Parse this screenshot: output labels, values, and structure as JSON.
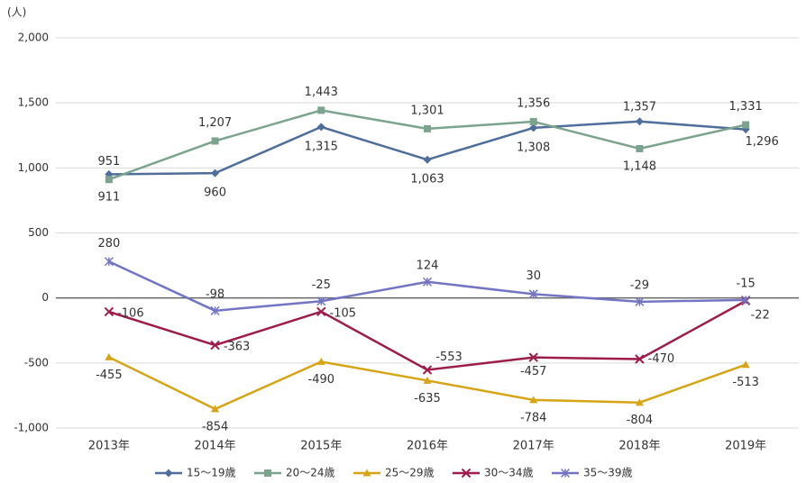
{
  "chart_data": {
    "type": "line",
    "unit_label": "(人)",
    "categories": [
      "2013年",
      "2014年",
      "2015年",
      "2016年",
      "2017年",
      "2018年",
      "2019年"
    ],
    "ylim": [
      -1000,
      2000
    ],
    "yticks": [
      {
        "value": -1000,
        "label": "-1,000"
      },
      -500,
      0,
      500,
      {
        "value": 1000,
        "label": "1,000"
      },
      {
        "value": 1500,
        "label": "1,500"
      },
      {
        "value": 2000,
        "label": "2,000"
      }
    ],
    "grid": true,
    "legend": "bottom",
    "series": [
      {
        "name": "15～19歳",
        "color": "#4f6e9c",
        "marker": "diamond",
        "values": [
          951,
          960,
          1315,
          1063,
          1308,
          1357,
          1296
        ],
        "value_labels": [
          "951",
          "960",
          "1,315",
          "1,063",
          "1,308",
          "1,357",
          "1,296"
        ]
      },
      {
        "name": "20～24歳",
        "color": "#7ba38d",
        "marker": "square",
        "values": [
          911,
          1207,
          1443,
          1301,
          1356,
          1148,
          1331
        ],
        "value_labels": [
          "911",
          "1,207",
          "1,443",
          "1,301",
          "1,356",
          "1,148",
          "1,331"
        ]
      },
      {
        "name": "25～29歳",
        "color": "#d6a414",
        "marker": "triangle",
        "values": [
          -455,
          -854,
          -490,
          -635,
          -784,
          -804,
          -513
        ]
      },
      {
        "name": "30～34歳",
        "color": "#9e1c4a",
        "marker": "x",
        "values": [
          -106,
          -363,
          -105,
          -553,
          -457,
          -470,
          -22
        ]
      },
      {
        "name": "35～39歳",
        "color": "#7474c4",
        "marker": "star",
        "values": [
          280,
          -98,
          -25,
          124,
          30,
          -29,
          -15
        ]
      }
    ]
  }
}
